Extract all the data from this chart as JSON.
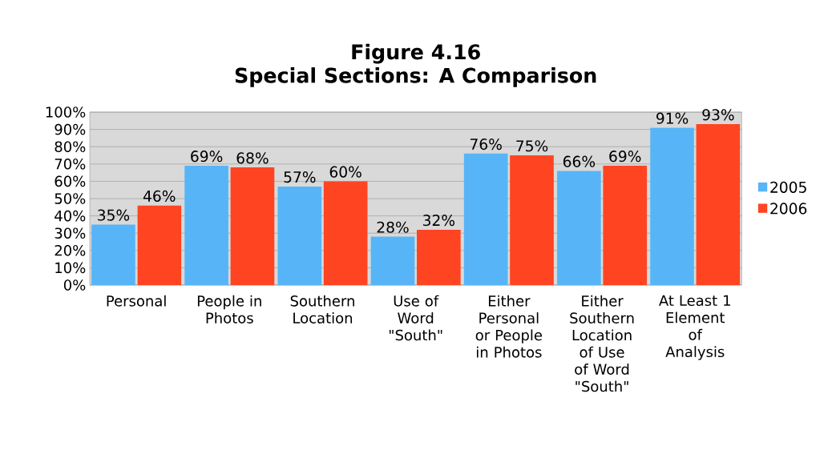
{
  "chart_data": {
    "type": "bar",
    "title": "Figure 4.16",
    "subtitle": "Special Sections: A Comparison",
    "categories": [
      "Personal",
      "People in Photos",
      "Southern Location",
      "Use of Word \"South\"",
      "Either Personal or People in Photos",
      "Either Southern Location of Use of Word \"South\"",
      "At Least 1 Element of Analysis"
    ],
    "series": [
      {
        "name": "2005",
        "color": "#57b5f7",
        "values": [
          35,
          69,
          57,
          28,
          76,
          66,
          91
        ],
        "value_labels": [
          "35%",
          "69%",
          "57%",
          "28%",
          "76%",
          "66%",
          "91%"
        ]
      },
      {
        "name": "2006",
        "color": "#ff4422",
        "values": [
          46,
          68,
          60,
          32,
          75,
          69,
          93
        ],
        "value_labels": [
          "46%",
          "68%",
          "60%",
          "32%",
          "75%",
          "69%",
          "93%"
        ]
      }
    ],
    "ylim": [
      0,
      100
    ],
    "yticks": [
      {
        "value": 0,
        "label": "0%"
      },
      {
        "value": 10,
        "label": "10%"
      },
      {
        "value": 20,
        "label": "20%"
      },
      {
        "value": 30,
        "label": "30%"
      },
      {
        "value": 40,
        "label": "40%"
      },
      {
        "value": 50,
        "label": "50%"
      },
      {
        "value": 60,
        "label": "60%"
      },
      {
        "value": 70,
        "label": "70%"
      },
      {
        "value": 80,
        "label": "80%"
      },
      {
        "value": 90,
        "label": "90%"
      },
      {
        "value": 100,
        "label": "100%"
      }
    ],
    "grid": "y",
    "legend": "right"
  }
}
